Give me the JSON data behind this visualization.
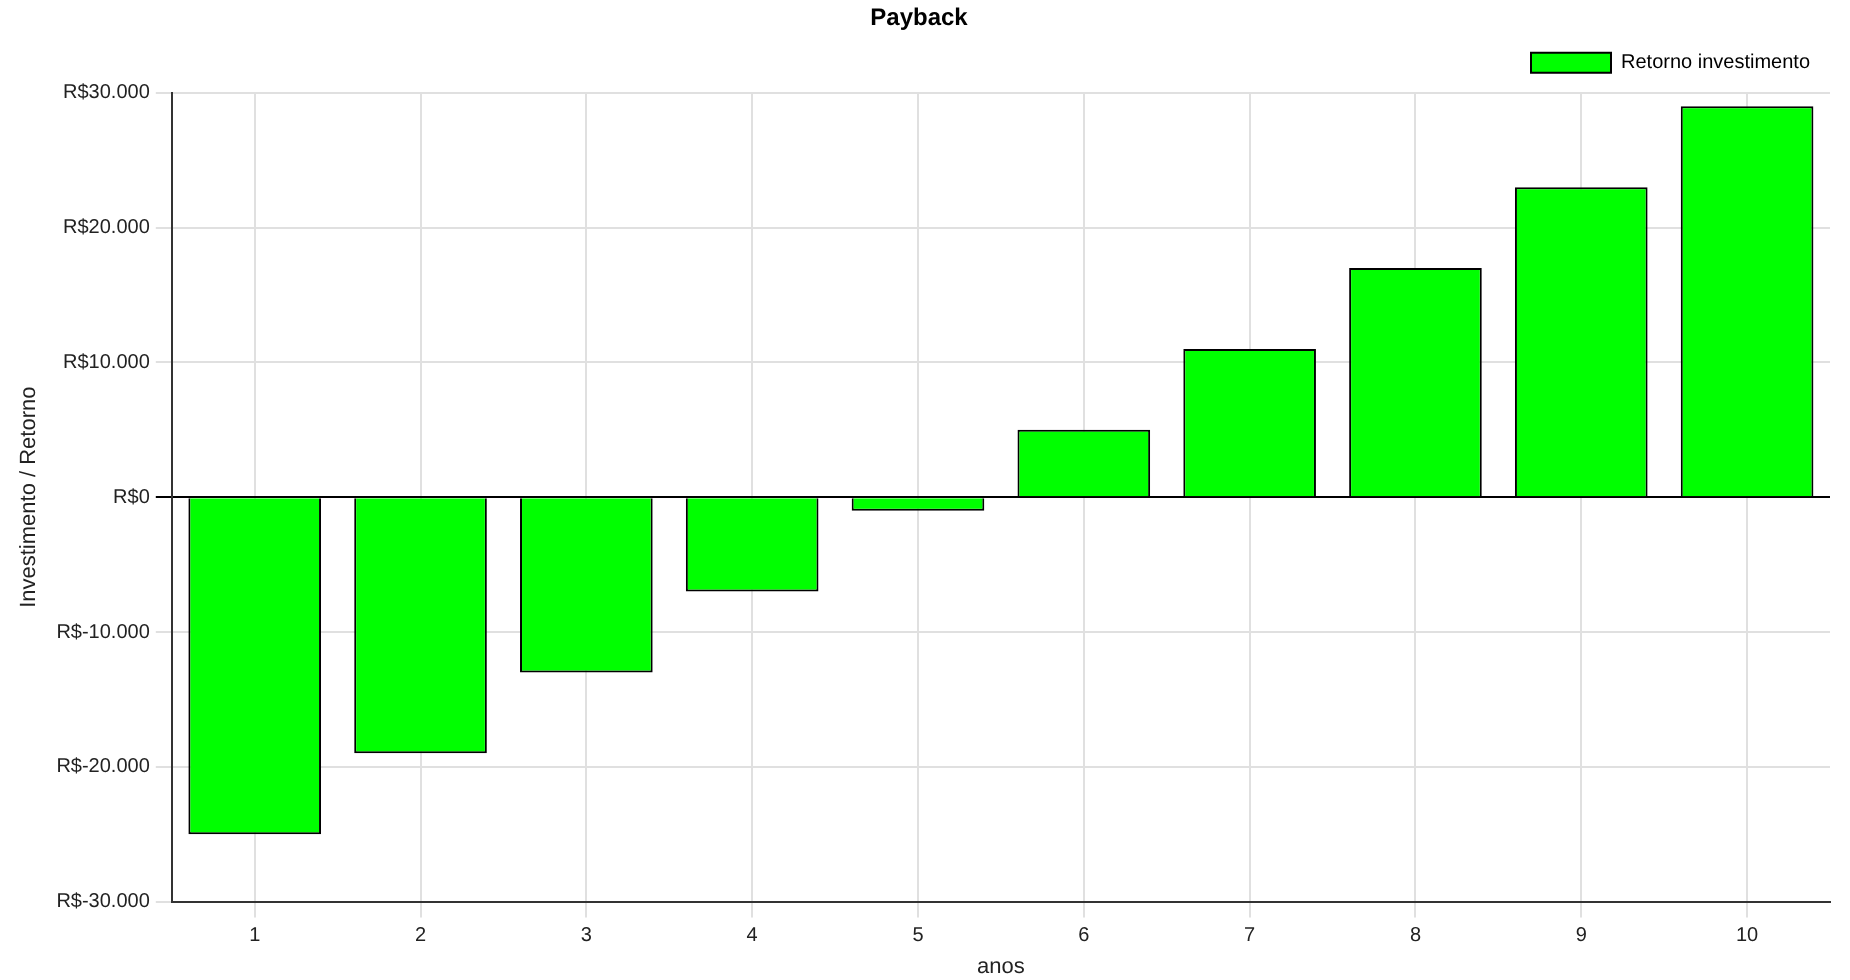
{
  "chart_data": {
    "type": "bar",
    "title": "Payback",
    "xlabel": "anos",
    "ylabel": "Investimento / Retorno",
    "categories": [
      "1",
      "2",
      "3",
      "4",
      "5",
      "6",
      "7",
      "8",
      "9",
      "10"
    ],
    "series": [
      {
        "name": "Retorno investimento",
        "color": "#00ff00",
        "values": [
          -25000,
          -19000,
          -13000,
          -7000,
          -1000,
          5000,
          11000,
          17000,
          23000,
          29000
        ]
      }
    ],
    "ylim": [
      -30000,
      30000
    ],
    "yticks": [
      {
        "value": -30000,
        "label": "R$-30.000"
      },
      {
        "value": -20000,
        "label": "R$-20.000"
      },
      {
        "value": -10000,
        "label": "R$-10.000"
      },
      {
        "value": 0,
        "label": "R$0"
      },
      {
        "value": 10000,
        "label": "R$10.000"
      },
      {
        "value": 20000,
        "label": "R$20.000"
      },
      {
        "value": 30000,
        "label": "R$30.000"
      }
    ],
    "grid": true,
    "legend": "top right"
  }
}
